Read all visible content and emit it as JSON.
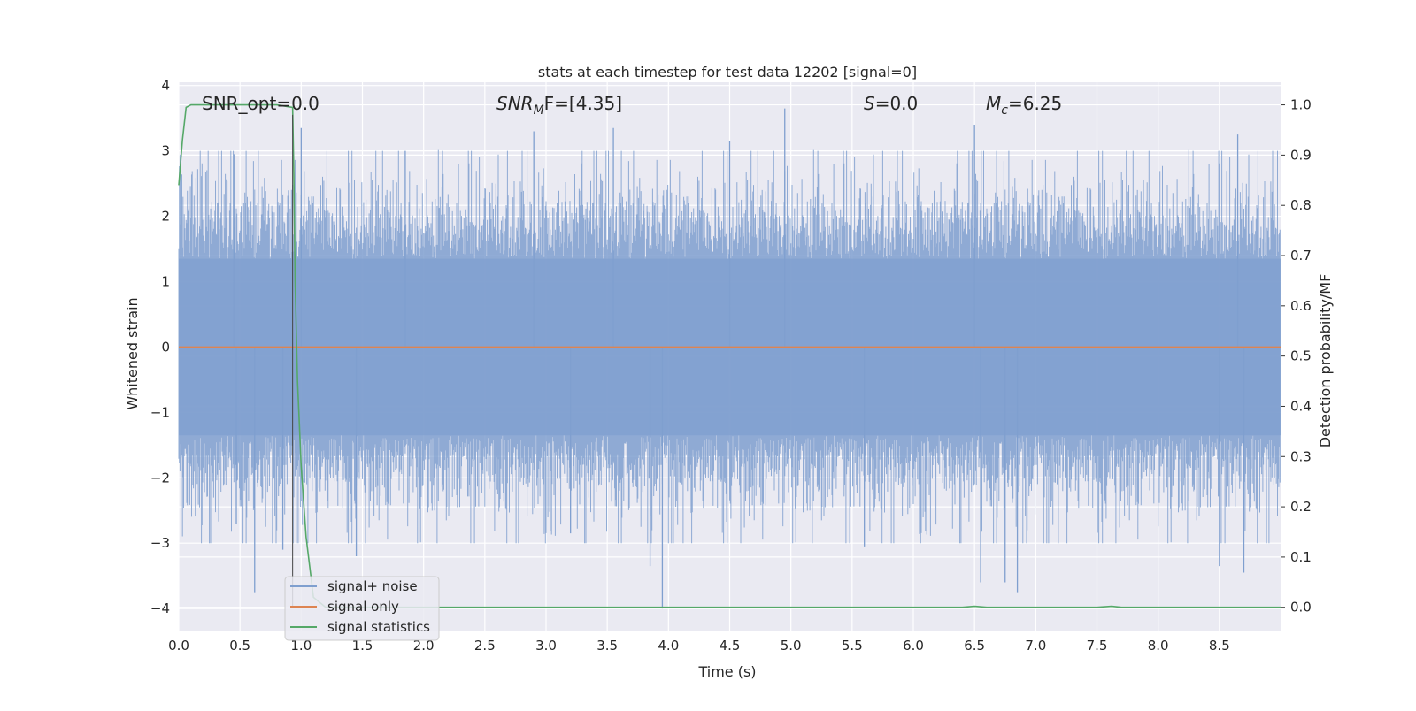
{
  "chart_data": {
    "type": "line",
    "title": "stats at each timestep for test data 12202 [signal=0]",
    "xlabel": "Time (s)",
    "ylabel": "Whitened strain",
    "ylabel_right": "Detection probability/MF",
    "xlim": [
      0,
      9
    ],
    "ylim": [
      -4.35,
      4.05
    ],
    "ylim_right": [
      -0.048,
      1.045
    ],
    "x_ticks": [
      "0.0",
      "0.5",
      "1.0",
      "1.5",
      "2.0",
      "2.5",
      "3.0",
      "3.5",
      "4.0",
      "4.5",
      "5.0",
      "5.5",
      "6.0",
      "6.5",
      "7.0",
      "7.5",
      "8.0",
      "8.5"
    ],
    "y_ticks": [
      "4",
      "3",
      "2",
      "1",
      "0",
      "−1",
      "−2",
      "−3",
      "−4"
    ],
    "y_ticks_right": [
      "1.0",
      "0.9",
      "0.8",
      "0.7",
      "0.6",
      "0.5",
      "0.4",
      "0.3",
      "0.2",
      "0.1",
      "0.0"
    ],
    "grid": true,
    "legend_position": "lower-left",
    "annotations": {
      "snr_opt": "SNR_opt=0.0",
      "snr_mf_main": "SNR",
      "snr_mf_sub": "M",
      "snr_mf_tail": "F=[4.35]",
      "s_italic": "S",
      "s_tail": "=0.0",
      "mc_italic": "M",
      "mc_sub": "c",
      "mc_tail": "=6.25"
    },
    "series": [
      {
        "name": "signal+ noise",
        "axis": "left",
        "color": "#7f9fcf",
        "description_values": "noise envelope peaks (selected spikes)",
        "spikes": [
          {
            "x": 0.45,
            "y": 2.95
          },
          {
            "x": 0.47,
            "y": -2.7
          },
          {
            "x": 0.62,
            "y": -3.75
          },
          {
            "x": 0.85,
            "y": -3.1
          },
          {
            "x": 1.0,
            "y": 3.35
          },
          {
            "x": 1.45,
            "y": -3.2
          },
          {
            "x": 1.85,
            "y": 3.0
          },
          {
            "x": 2.9,
            "y": 3.3
          },
          {
            "x": 3.2,
            "y": -2.85
          },
          {
            "x": 3.55,
            "y": 3.35
          },
          {
            "x": 3.85,
            "y": -3.35
          },
          {
            "x": 3.95,
            "y": -4.0
          },
          {
            "x": 4.5,
            "y": 3.15
          },
          {
            "x": 4.95,
            "y": 3.65
          },
          {
            "x": 5.6,
            "y": -3.05
          },
          {
            "x": 6.5,
            "y": 3.4
          },
          {
            "x": 6.55,
            "y": -3.6
          },
          {
            "x": 6.75,
            "y": -3.6
          },
          {
            "x": 6.85,
            "y": -3.75
          },
          {
            "x": 8.5,
            "y": -3.35
          },
          {
            "x": 8.65,
            "y": 3.25
          },
          {
            "x": 8.7,
            "y": -3.45
          }
        ]
      },
      {
        "name": "signal only",
        "axis": "left",
        "color": "#dd8452",
        "x": [
          0,
          9
        ],
        "y": [
          0,
          0
        ]
      },
      {
        "name": "signal statistics",
        "axis": "right",
        "color": "#55a868",
        "x": [
          0.0,
          0.03,
          0.06,
          0.1,
          0.2,
          0.5,
          0.8,
          0.93,
          0.94,
          0.95,
          0.97,
          1.0,
          1.04,
          1.08,
          1.1,
          1.2,
          3.0,
          6.4,
          6.5,
          6.6,
          7.5,
          7.62,
          7.7,
          9.0
        ],
        "y": [
          0.84,
          0.93,
          0.995,
          1.0,
          1.0,
          1.0,
          1.0,
          0.995,
          0.86,
          0.65,
          0.45,
          0.28,
          0.14,
          0.06,
          0.02,
          0.0,
          0.0,
          0.0,
          0.002,
          0.0,
          0.0,
          0.002,
          0.0,
          0.0
        ]
      }
    ],
    "colors": {
      "plot_bg": "#eaeaf2",
      "grid": "#ffffff",
      "noise_fill": "#7f9fcf",
      "signal_only": "#dd8452",
      "statistics": "#55a868"
    }
  }
}
